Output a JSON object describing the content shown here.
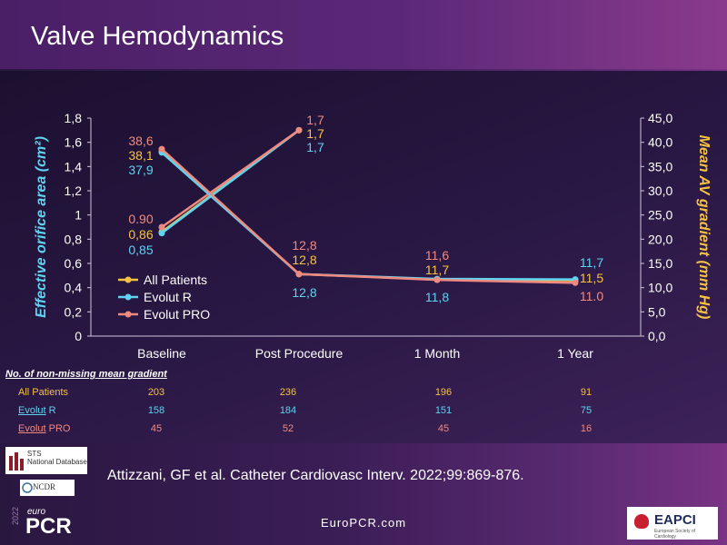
{
  "slide": {
    "title": "Valve Hemodynamics",
    "citation": "Attizzani, GF et al. Catheter Cardiovasc Interv. 2022;99:869-876.",
    "footer_site": "EuroPCR.com",
    "logos": {
      "sts_line1": "STS",
      "sts_line2": "National Database",
      "ncdr": "NCDR",
      "europcr_year": "2022",
      "europcr_euro": "euro",
      "europcr_pcr": "PCR",
      "eapci": "EAPCI",
      "eapci_sub": "European Society of Cardiology"
    }
  },
  "colors": {
    "all_patients": "#f5c242",
    "evolut_r": "#5fd3f0",
    "evolut_pro": "#f08a80",
    "axis_text": "#ffffff"
  },
  "chart_data": {
    "type": "line",
    "title": "",
    "xlabel": "",
    "ylabel_left": "Effective orifice area (cm²)",
    "ylabel_right": "Mean AV gradient (mm Hg)",
    "categories": [
      "Baseline",
      "Post Procedure",
      "1 Month",
      "1 Year"
    ],
    "y_left": {
      "lim": [
        0,
        1.8
      ],
      "ticks": [
        "0",
        "0,2",
        "0,4",
        "0,6",
        "0,8",
        "1",
        "1,2",
        "1,4",
        "1,6",
        "1,8"
      ]
    },
    "y_right": {
      "lim": [
        0,
        45
      ],
      "ticks": [
        "0,0",
        "5,0",
        "10,0",
        "15,0",
        "20,0",
        "25,0",
        "30,0",
        "35,0",
        "40,0",
        "45,0"
      ]
    },
    "grid": false,
    "legend_position": "lower-left",
    "legend": [
      "All Patients",
      "Evolut R",
      "Evolut PRO"
    ],
    "eoa_series": [
      {
        "name": "All Patients",
        "values": [
          0.86,
          1.7
        ],
        "labels": [
          "0,86",
          "1,7"
        ]
      },
      {
        "name": "Evolut R",
        "values": [
          0.85,
          1.7
        ],
        "labels": [
          "0,85",
          "1,7"
        ]
      },
      {
        "name": "Evolut PRO",
        "values": [
          0.9,
          1.7
        ],
        "labels": [
          "0.90",
          "1,7"
        ]
      }
    ],
    "gradient_series": [
      {
        "name": "All Patients",
        "values": [
          38.1,
          12.8,
          11.7,
          11.5
        ],
        "labels": [
          "38,1",
          "12,8",
          "11,7",
          "11,5"
        ]
      },
      {
        "name": "Evolut R",
        "values": [
          37.9,
          12.8,
          11.8,
          11.7
        ],
        "labels": [
          "37,9",
          "12,8",
          "11,8",
          "11,7"
        ]
      },
      {
        "name": "Evolut PRO",
        "values": [
          38.6,
          12.8,
          11.6,
          11.0
        ],
        "labels": [
          "38,6",
          "12,8",
          "11,6",
          "11.0"
        ]
      }
    ]
  },
  "table": {
    "header": "No. of non-missing mean gradient",
    "rows": [
      {
        "label": "All Patients",
        "values": [
          "203",
          "236",
          "196",
          "91"
        ]
      },
      {
        "label_main": "Evolut",
        "label_suffix": " R",
        "values": [
          "158",
          "184",
          "151",
          "75"
        ]
      },
      {
        "label_main": "Evolut",
        "label_suffix": " PRO",
        "values": [
          "45",
          "52",
          "45",
          "16"
        ]
      }
    ]
  }
}
